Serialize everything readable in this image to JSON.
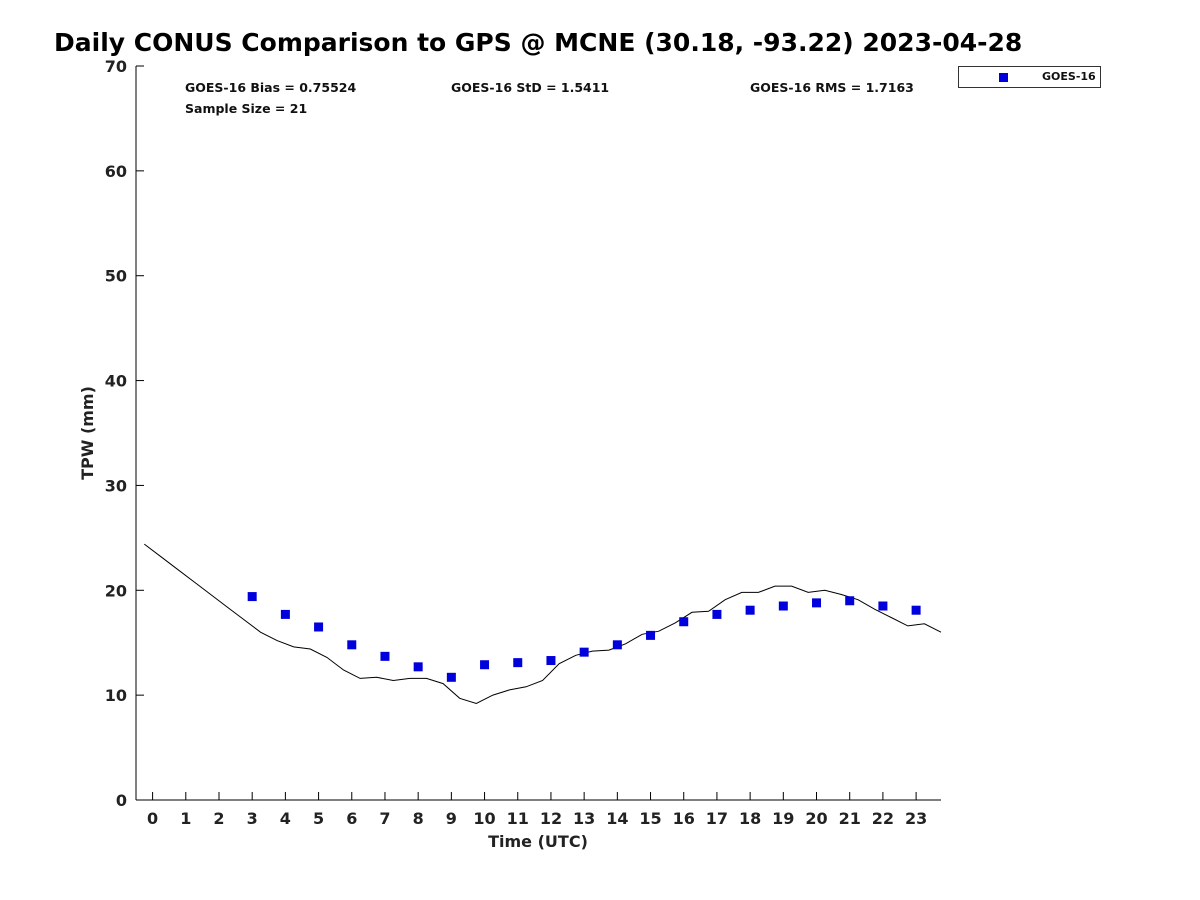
{
  "chart_data": {
    "type": "scatter",
    "title": "Daily CONUS Comparison to GPS @ MCNE (30.18, -93.22) 2023-04-28",
    "xlabel": "Time (UTC)",
    "ylabel": "TPW (mm)",
    "xlim": [
      -0.5,
      23.75
    ],
    "ylim": [
      0,
      70
    ],
    "xticks": [
      0,
      1,
      2,
      3,
      4,
      5,
      6,
      7,
      8,
      9,
      10,
      11,
      12,
      13,
      14,
      15,
      16,
      17,
      18,
      19,
      20,
      21,
      22,
      23
    ],
    "yticks": [
      0,
      10,
      20,
      30,
      40,
      50,
      60,
      70
    ],
    "grid": false,
    "legend_placement": "top-right, outside",
    "stats": {
      "bias": "GOES-16 Bias = 0.75524",
      "std": "GOES-16 StD = 1.5411",
      "rms": "GOES-16 RMS = 1.7163",
      "sample": "Sample Size = 21"
    },
    "series": [
      {
        "name": "GOES-16",
        "kind": "markers",
        "color": "#0000dd",
        "x": [
          3,
          4,
          5,
          6,
          7,
          8,
          9,
          10,
          11,
          12,
          13,
          14,
          15,
          16,
          17,
          18,
          19,
          20,
          21,
          22,
          23
        ],
        "y": [
          19.4,
          17.7,
          16.5,
          14.8,
          13.7,
          12.7,
          11.7,
          12.9,
          13.1,
          13.3,
          14.1,
          14.8,
          15.7,
          17.0,
          17.7,
          18.1,
          18.5,
          18.8,
          19.0,
          18.5,
          18.1
        ]
      },
      {
        "kind": "line",
        "color": "#000000",
        "x": [
          -0.25,
          0.25,
          0.75,
          1.25,
          1.75,
          2.25,
          2.75,
          3.25,
          3.75,
          4.25,
          4.75,
          5.25,
          5.75,
          6.25,
          6.75,
          7.25,
          7.75,
          8.25,
          8.75,
          9.25,
          9.75,
          10.25,
          10.75,
          11.25,
          11.75,
          12.25,
          12.75,
          13.25,
          13.75,
          14.25,
          14.75,
          15.25,
          15.75,
          16.25,
          16.75,
          17.25,
          17.75,
          18.25,
          18.75,
          19.25,
          19.75,
          20.25,
          20.75,
          21.25,
          21.75,
          22.25,
          22.75,
          23.25,
          23.75
        ],
        "y": [
          24.4,
          23.2,
          22.0,
          20.8,
          19.6,
          18.4,
          17.2,
          16.0,
          15.2,
          14.6,
          14.4,
          13.6,
          12.4,
          11.6,
          11.7,
          11.4,
          11.6,
          11.6,
          11.1,
          9.7,
          9.2,
          10.0,
          10.5,
          10.8,
          11.4,
          13.0,
          13.8,
          14.2,
          14.3,
          14.9,
          15.8,
          16.1,
          16.9,
          17.9,
          18.0,
          19.1,
          19.8,
          19.8,
          20.4,
          20.4,
          19.8,
          20.0,
          19.6,
          19.1,
          18.2,
          17.4,
          16.6,
          16.8,
          16.0
        ]
      }
    ]
  }
}
